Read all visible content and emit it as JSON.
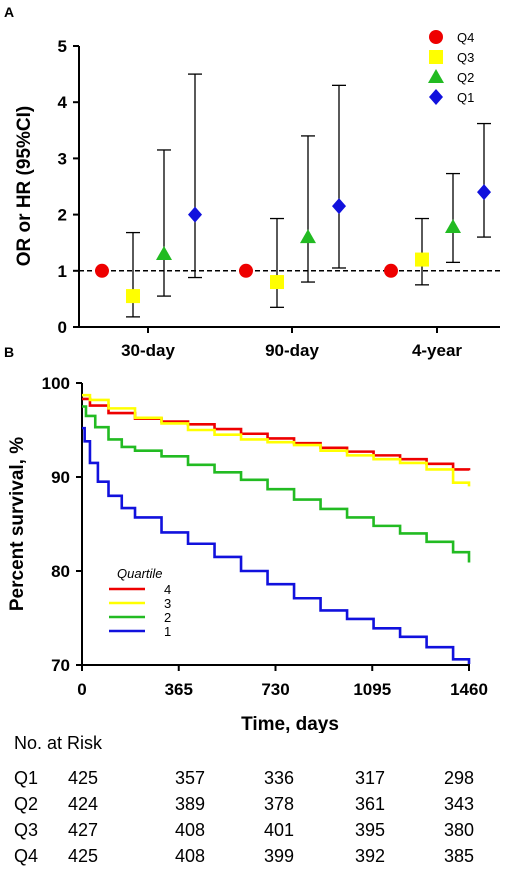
{
  "chart_data": [
    {
      "panel": "A",
      "type": "scatter",
      "ylabel": "OR or HR (95%CI)",
      "ylim": [
        0,
        5
      ],
      "yticks": [
        "0",
        "1",
        "2",
        "3",
        "4",
        "5"
      ],
      "categories": [
        "30-day",
        "90-day",
        "4-year"
      ],
      "reference_line": 1,
      "legend_position": "top-right",
      "series": [
        {
          "name": "Q4",
          "color": "#ee0000",
          "marker": "circle",
          "values": [
            1.0,
            1.0,
            1.0
          ],
          "ci": [
            [
              1.0,
              1.0
            ],
            [
              1.0,
              1.0
            ],
            [
              1.0,
              1.0
            ]
          ]
        },
        {
          "name": "Q3",
          "color": "#ffff00",
          "marker": "square",
          "values": [
            0.55,
            0.8,
            1.2
          ],
          "ci": [
            [
              0.18,
              1.68
            ],
            [
              0.35,
              1.93
            ],
            [
              0.75,
              1.93
            ]
          ]
        },
        {
          "name": "Q2",
          "color": "#22bb22",
          "marker": "triangle",
          "values": [
            1.3,
            1.6,
            1.78
          ],
          "ci": [
            [
              0.55,
              3.15
            ],
            [
              0.8,
              3.4
            ],
            [
              1.15,
              2.73
            ]
          ]
        },
        {
          "name": "Q1",
          "color": "#1111dd",
          "marker": "diamond",
          "values": [
            2.0,
            2.15,
            2.4
          ],
          "ci": [
            [
              0.88,
              4.5
            ],
            [
              1.05,
              4.3
            ],
            [
              1.6,
              3.62
            ]
          ]
        }
      ]
    },
    {
      "panel": "B",
      "type": "line",
      "xlabel": "Time, days",
      "ylabel": "Percent survival, %",
      "xlim": [
        0,
        1460
      ],
      "ylim": [
        70,
        100
      ],
      "xticks": [
        "0",
        "365",
        "730",
        "1095",
        "1460"
      ],
      "yticks": [
        "70",
        "80",
        "90",
        "100"
      ],
      "legend_title": "Quartile",
      "legend_position": "lower-left",
      "series": [
        {
          "name": "4",
          "color": "#ee0000",
          "x": [
            0,
            30,
            100,
            200,
            300,
            400,
            500,
            600,
            700,
            800,
            900,
            1000,
            1100,
            1200,
            1300,
            1400,
            1460
          ],
          "y": [
            98.3,
            97.6,
            96.8,
            96.2,
            95.9,
            95.6,
            95.1,
            94.6,
            94.1,
            93.6,
            93.1,
            92.7,
            92.3,
            91.9,
            91.4,
            90.8,
            90.7
          ]
        },
        {
          "name": "3",
          "color": "#ffff00",
          "x": [
            0,
            30,
            100,
            200,
            300,
            400,
            500,
            600,
            700,
            800,
            900,
            1000,
            1100,
            1200,
            1300,
            1400,
            1460
          ],
          "y": [
            98.7,
            98.2,
            97.3,
            96.3,
            95.7,
            95.0,
            94.5,
            94.0,
            93.7,
            93.4,
            92.8,
            92.3,
            91.9,
            91.5,
            90.8,
            89.4,
            89.0
          ]
        },
        {
          "name": "2",
          "color": "#22bb22",
          "x": [
            0,
            15,
            50,
            100,
            150,
            200,
            300,
            400,
            500,
            600,
            700,
            800,
            900,
            1000,
            1100,
            1200,
            1300,
            1400,
            1460
          ],
          "y": [
            97.5,
            96.5,
            95.3,
            94.0,
            93.2,
            92.8,
            92.2,
            91.3,
            90.5,
            89.7,
            88.7,
            87.6,
            86.6,
            85.7,
            84.8,
            84.0,
            83.1,
            82.0,
            80.9
          ]
        },
        {
          "name": "1",
          "color": "#1111dd",
          "x": [
            0,
            10,
            30,
            60,
            100,
            150,
            200,
            300,
            400,
            500,
            600,
            700,
            800,
            900,
            1000,
            1100,
            1200,
            1300,
            1400,
            1460
          ],
          "y": [
            95.2,
            93.8,
            91.5,
            89.5,
            88.0,
            86.7,
            85.7,
            84.1,
            82.9,
            81.5,
            80.0,
            78.6,
            77.1,
            75.8,
            74.9,
            73.9,
            73.0,
            71.9,
            70.6,
            70.1
          ]
        }
      ]
    }
  ],
  "panels": {
    "a_label": "A",
    "b_label": "B"
  },
  "risk_table": {
    "title": "No. at Risk",
    "rows": [
      {
        "label": "Q1",
        "values": [
          "425",
          "357",
          "336",
          "317",
          "298"
        ]
      },
      {
        "label": "Q2",
        "values": [
          "424",
          "389",
          "378",
          "361",
          "343"
        ]
      },
      {
        "label": "Q3",
        "values": [
          "427",
          "408",
          "401",
          "395",
          "380"
        ]
      },
      {
        "label": "Q4",
        "values": [
          "425",
          "408",
          "399",
          "392",
          "385"
        ]
      }
    ]
  }
}
